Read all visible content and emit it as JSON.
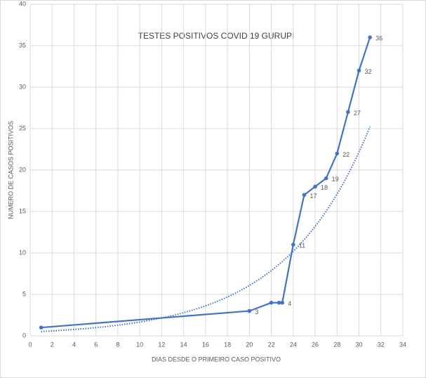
{
  "chart_data": {
    "type": "line",
    "title": "TESTES POSITIVOS COVID 19 GURUPI",
    "x_label": "DIAS DESDE O PRIMEIRO CASO POSITIVO",
    "y_label": "NUMERO DE CASOS POSITIVOS",
    "x": [
      1,
      20,
      22,
      22.7,
      23,
      24,
      25,
      26,
      27,
      28,
      29,
      30,
      31
    ],
    "values": [
      1,
      3,
      4,
      4,
      4,
      11,
      17,
      18,
      19,
      22,
      27,
      32,
      36
    ],
    "value_labels": [
      null,
      "3",
      null,
      null,
      "4",
      "11",
      "17",
      "18",
      "19",
      "22",
      "27",
      "32",
      "36"
    ],
    "color": "#4472c4",
    "trendline": "exponential",
    "xlim": [
      0,
      34
    ],
    "xticks": [
      0,
      2,
      4,
      6,
      8,
      10,
      12,
      14,
      16,
      18,
      20,
      22,
      24,
      26,
      28,
      30,
      32,
      34
    ],
    "ylim": [
      0,
      40
    ],
    "yticks": [
      0,
      5,
      10,
      15,
      20,
      25,
      30,
      35,
      40
    ],
    "grid": true
  }
}
